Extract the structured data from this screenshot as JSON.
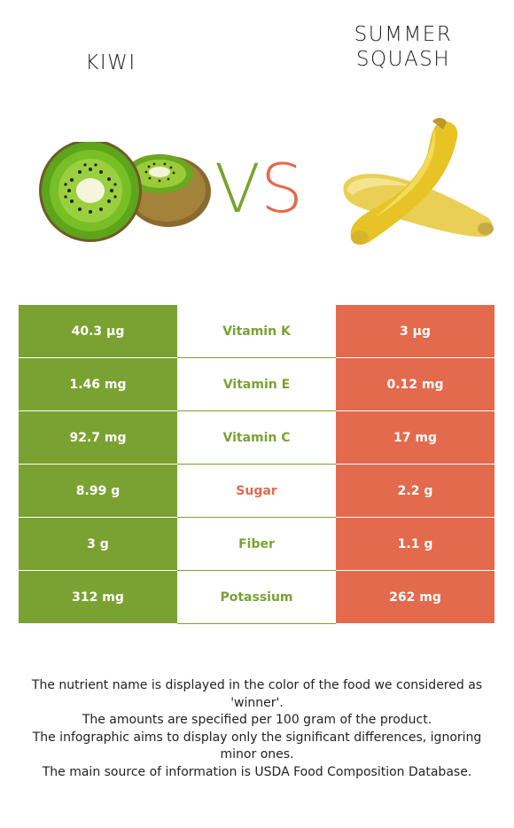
{
  "left_food": {
    "name": "KIWI",
    "color": "#7aa232"
  },
  "right_food": {
    "name": "SUMMER\nSQUASH",
    "color": "#e36a4c"
  },
  "vs": {
    "v": "V",
    "s": "S"
  },
  "rows": [
    {
      "left": "40.3 µg",
      "nutrient": "Vitamin K",
      "right": "3 µg",
      "winner": "left"
    },
    {
      "left": "1.46 mg",
      "nutrient": "Vitamin E",
      "right": "0.12 mg",
      "winner": "left"
    },
    {
      "left": "92.7 mg",
      "nutrient": "Vitamin C",
      "right": "17 mg",
      "winner": "left"
    },
    {
      "left": "8.99 g",
      "nutrient": "Sugar",
      "right": "2.2 g",
      "winner": "right"
    },
    {
      "left": "3 g",
      "nutrient": "Fiber",
      "right": "1.1 g",
      "winner": "left"
    },
    {
      "left": "312 mg",
      "nutrient": "Potassium",
      "right": "262 mg",
      "winner": "left"
    }
  ],
  "notes": [
    "The nutrient name is displayed in the color of the food we considered as 'winner'.",
    "The amounts are specified per 100 gram of the product.",
    "The infographic aims to display only the significant differences, ignoring minor ones.",
    "The main source of information is USDA Food Composition Database."
  ]
}
